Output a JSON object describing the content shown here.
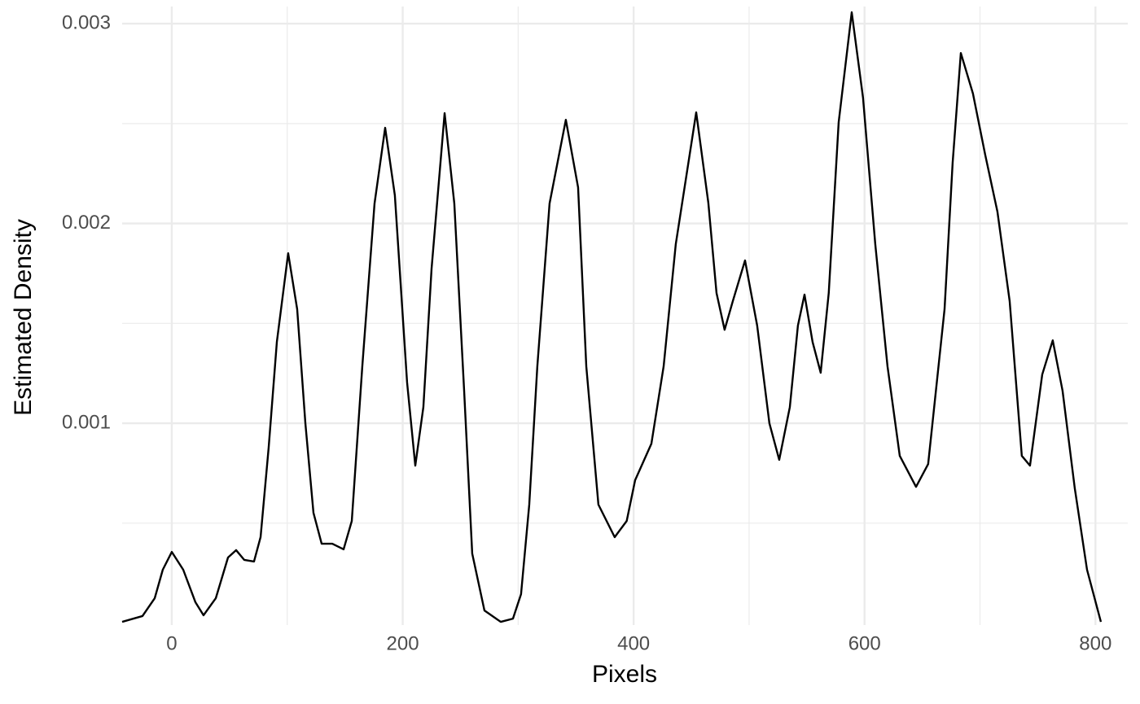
{
  "chart_data": {
    "type": "line",
    "x_label": "Pixels",
    "y_label": "Estimated Density",
    "xlim": [
      -43,
      828
    ],
    "ylim": [
      -1e-05,
      0.003086
    ],
    "xticks": [
      0,
      200,
      400,
      600,
      800
    ],
    "yticks": [
      0.001,
      0.002,
      0.003
    ],
    "minor_xticks": [
      100,
      300,
      500,
      700
    ],
    "minor_yticks": [
      0.0005,
      0.0015,
      0.0025
    ],
    "grid": true,
    "series": [
      {
        "color": "#000000",
        "x": [
          -43,
          -25.4,
          -14.8,
          -7.8,
          0,
          9.9,
          20.5,
          27.5,
          38.1,
          48.7,
          55.7,
          62.8,
          71.2,
          76.9,
          83.9,
          91,
          100.8,
          108.6,
          115.7,
          122.7,
          129.8,
          139,
          148.8,
          155.9,
          165,
          175.6,
          184.8,
          193.2,
          203.8,
          210.9,
          217.9,
          225,
          236.3,
          244.7,
          253.2,
          260.2,
          270.8,
          284.9,
          295.5,
          302.5,
          309.6,
          316.6,
          327.2,
          341.3,
          351.9,
          359,
          369.5,
          383.6,
          394,
          401.3,
          415.4,
          426,
          436.5,
          454.2,
          464.7,
          471.8,
          478.8,
          485.9,
          496.5,
          507,
          517.6,
          526.1,
          535.3,
          542.3,
          548,
          555,
          562,
          569,
          577.6,
          588.9,
          598.7,
          609.3,
          619.9,
          630.5,
          644.6,
          655.1,
          669.3,
          676.3,
          683.4,
          693.9,
          704.5,
          715.1,
          725.7,
          736.2,
          743.3,
          753.9,
          763,
          771.5,
          782.1,
          792.7,
          804.7
        ],
        "values": [
          6e-06,
          3.5e-05,
          0.000124,
          0.000267,
          0.000356,
          0.000267,
          0.000104,
          3.9e-05,
          0.000124,
          0.000328,
          0.000365,
          0.000316,
          0.000308,
          0.00043,
          0.000878,
          0.001407,
          0.001851,
          0.001571,
          0.001,
          0.000552,
          0.000397,
          0.000397,
          0.000369,
          0.000511,
          0.001285,
          0.0021,
          0.002479,
          0.002141,
          0.001204,
          0.000788,
          0.001081,
          0.001774,
          0.002552,
          0.0021,
          0.001163,
          0.000348,
          6.3e-05,
          6e-06,
          2.2e-05,
          0.000145,
          0.000593,
          0.001285,
          0.0021,
          0.002519,
          0.002181,
          0.001285,
          0.000593,
          0.00043,
          0.000511,
          0.000715,
          0.000898,
          0.001285,
          0.001896,
          0.002556,
          0.002104,
          0.001652,
          0.001468,
          0.001611,
          0.001815,
          0.001489,
          0.001,
          0.000817,
          0.001081,
          0.001489,
          0.001644,
          0.001407,
          0.001253,
          0.001652,
          0.002507,
          0.003057,
          0.002629,
          0.001896,
          0.001285,
          0.000837,
          0.000682,
          0.000796,
          0.001571,
          0.002303,
          0.002853,
          0.00265,
          0.002344,
          0.002059,
          0.001611,
          0.000837,
          0.000788,
          0.001244,
          0.001415,
          0.001163,
          0.000674,
          0.000267,
          6e-06
        ]
      }
    ]
  }
}
